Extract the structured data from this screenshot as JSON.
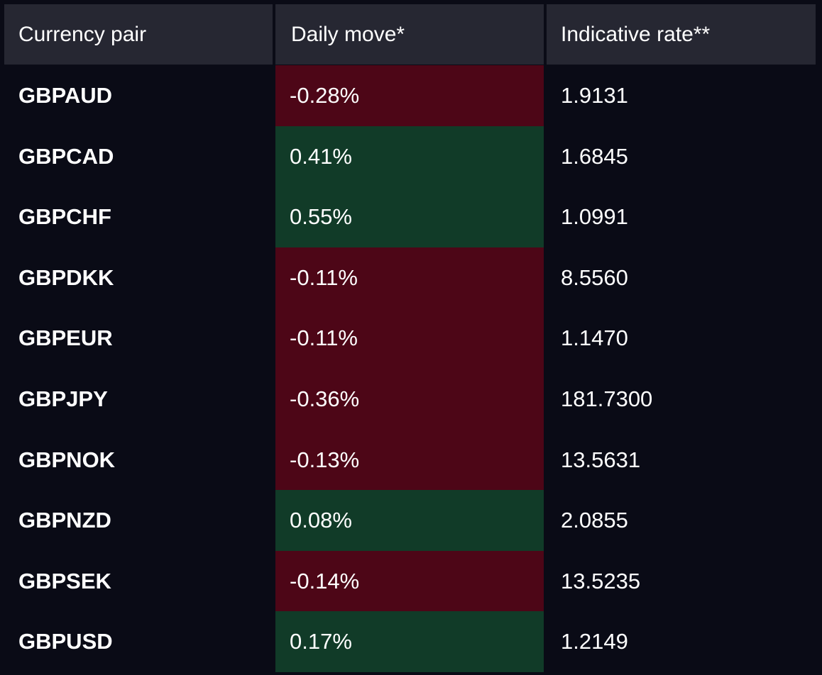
{
  "header": {
    "col_pair": "Currency pair",
    "col_move": "Daily move*",
    "col_rate": "Indicative rate**"
  },
  "rows": [
    {
      "pair": "GBPAUD",
      "move": "-0.28%",
      "rate": "1.9131",
      "direction": "negative"
    },
    {
      "pair": "GBPCAD",
      "move": "0.41%",
      "rate": "1.6845",
      "direction": "positive"
    },
    {
      "pair": "GBPCHF",
      "move": "0.55%",
      "rate": "1.0991",
      "direction": "positive"
    },
    {
      "pair": "GBPDKK",
      "move": "-0.11%",
      "rate": "8.5560",
      "direction": "negative"
    },
    {
      "pair": "GBPEUR",
      "move": "-0.11%",
      "rate": "1.1470",
      "direction": "negative"
    },
    {
      "pair": "GBPJPY",
      "move": "-0.36%",
      "rate": "181.7300",
      "direction": "negative"
    },
    {
      "pair": "GBPNOK",
      "move": "-0.13%",
      "rate": "13.5631",
      "direction": "negative"
    },
    {
      "pair": "GBPNZD",
      "move": "0.08%",
      "rate": "2.0855",
      "direction": "positive"
    },
    {
      "pair": "GBPSEK",
      "move": "-0.14%",
      "rate": "13.5235",
      "direction": "negative"
    },
    {
      "pair": "GBPUSD",
      "move": "0.17%",
      "rate": "1.2149",
      "direction": "positive"
    }
  ],
  "colors": {
    "background": "#0a0b16",
    "header_bg": "#262732",
    "negative_bg": "#4d0617",
    "positive_bg": "#113b28",
    "text": "#ffffff"
  }
}
